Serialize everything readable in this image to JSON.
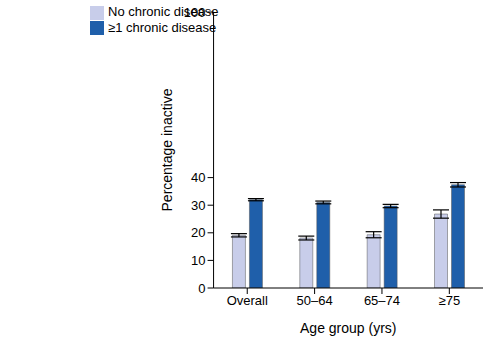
{
  "chart_data": {
    "type": "bar",
    "x_label": "Age group (yrs)",
    "y_label": "Percentage inactive",
    "categories": [
      "Overall",
      "50–64",
      "65–74",
      "≥75"
    ],
    "series": [
      {
        "name": "No chronic disease",
        "color": "#c8cdea",
        "values": [
          19.1,
          18.1,
          19.3,
          26.8
        ],
        "errors": [
          0.6,
          0.7,
          1.1,
          1.5
        ]
      },
      {
        "name": "≥1 chronic disease",
        "color": "#1f5faa",
        "values": [
          32.0,
          31.0,
          29.7,
          37.4
        ],
        "errors": [
          0.4,
          0.5,
          0.6,
          0.8
        ]
      }
    ],
    "ylim": [
      0,
      100
    ],
    "yticks": [
      0,
      10,
      20,
      30,
      40,
      100
    ],
    "grid": false,
    "legend": "upper left"
  }
}
